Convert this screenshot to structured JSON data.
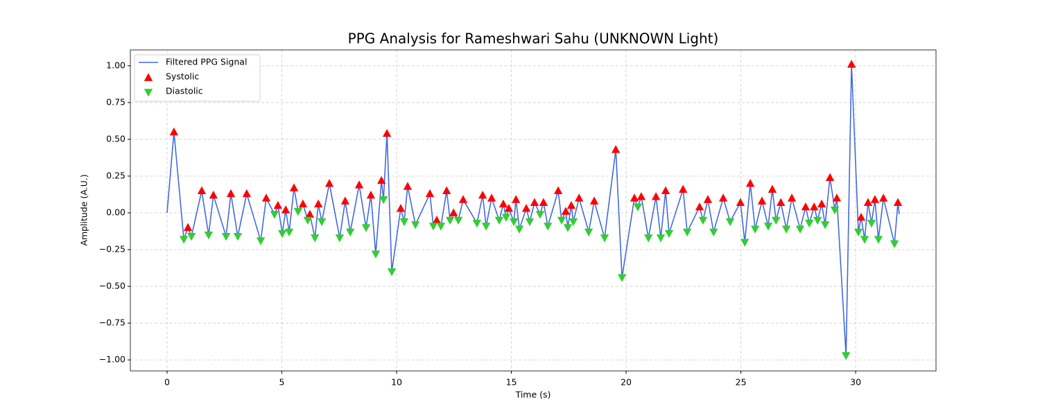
{
  "chart_data": {
    "type": "line",
    "title": "PPG Analysis for Rameshwari Sahu (UNKNOWN Light)",
    "x_label": "Time (s)",
    "y_label": "Amplitude (A.U.)",
    "xlim": [
      -1.6,
      33.5
    ],
    "ylim": [
      -1.075,
      1.108
    ],
    "xticks": [
      0,
      5,
      10,
      15,
      20,
      25,
      30
    ],
    "yticks": [
      {
        "value": -1,
        "label": "−1.00"
      },
      {
        "value": -0.75,
        "label": "−0.75"
      },
      {
        "value": -0.5,
        "label": "−0.50"
      },
      {
        "value": -0.25,
        "label": "−0.25"
      },
      {
        "value": 0,
        "label": "0.00"
      },
      {
        "value": 0.25,
        "label": "0.25"
      },
      {
        "value": 0.5,
        "label": "0.50"
      },
      {
        "value": 0.75,
        "label": "0.75"
      },
      {
        "value": 1,
        "label": "1.00"
      }
    ],
    "grid": true,
    "legend": "upper-left",
    "series": [
      {
        "name": "Filtered PPG Signal",
        "mark": "line",
        "color": "#4169e1",
        "x": [
          0,
          0.3,
          0.73,
          0.91,
          1.06,
          1.51,
          1.81,
          2.02,
          2.57,
          2.78,
          3.08,
          3.47,
          4.08,
          4.32,
          4.68,
          4.83,
          5.02,
          5.17,
          5.32,
          5.53,
          5.71,
          5.92,
          6.13,
          6.22,
          6.44,
          6.59,
          6.74,
          7.07,
          7.52,
          7.76,
          7.98,
          8.37,
          8.67,
          8.88,
          9.09,
          9.34,
          9.43,
          9.58,
          9.79,
          10.18,
          10.33,
          10.48,
          10.82,
          11.45,
          11.6,
          11.75,
          11.93,
          12.18,
          12.33,
          12.48,
          12.69,
          12.9,
          13.5,
          13.75,
          13.9,
          14.14,
          14.47,
          14.65,
          14.77,
          14.89,
          15.11,
          15.2,
          15.35,
          15.65,
          15.8,
          16.01,
          16.25,
          16.4,
          16.59,
          17.04,
          17.19,
          17.37,
          17.46,
          17.61,
          17.7,
          17.95,
          18.37,
          18.61,
          19.06,
          19.55,
          19.82,
          20.36,
          20.51,
          20.66,
          20.97,
          21.3,
          21.51,
          21.72,
          21.87,
          22.48,
          22.66,
          23.2,
          23.35,
          23.56,
          23.81,
          24.23,
          24.53,
          24.98,
          25.17,
          25.41,
          25.62,
          25.92,
          26.19,
          26.37,
          26.53,
          26.74,
          26.98,
          27.22,
          27.58,
          27.82,
          27.98,
          28.19,
          28.34,
          28.52,
          28.67,
          28.88,
          29.09,
          29.18,
          29.58,
          29.82,
          30.12,
          30.24,
          30.39,
          30.54,
          30.69,
          30.84,
          30.99,
          31.21,
          31.69,
          31.84,
          31.9
        ],
        "y": [
          0,
          0.55,
          -0.18,
          -0.1,
          -0.16,
          0.15,
          -0.15,
          0.12,
          -0.16,
          0.13,
          -0.16,
          0.13,
          -0.19,
          0.1,
          -0.01,
          0.05,
          -0.14,
          0.02,
          -0.13,
          0.17,
          0.01,
          0.06,
          -0.05,
          -0.01,
          -0.17,
          0.06,
          -0.06,
          0.2,
          -0.17,
          0.08,
          -0.13,
          0.19,
          -0.1,
          0.12,
          -0.28,
          0.22,
          0.09,
          0.54,
          -0.4,
          0.03,
          -0.06,
          0.18,
          -0.08,
          0.13,
          -0.09,
          -0.05,
          -0.09,
          0.15,
          -0.05,
          0.0,
          -0.05,
          0.09,
          -0.07,
          0.12,
          -0.09,
          0.1,
          -0.05,
          0.06,
          -0.03,
          0.03,
          -0.06,
          0.09,
          -0.11,
          0.03,
          -0.06,
          0.07,
          -0.01,
          0.07,
          -0.09,
          0.15,
          -0.05,
          0.01,
          -0.1,
          0.05,
          -0.06,
          0.1,
          -0.13,
          0.08,
          -0.17,
          0.43,
          -0.44,
          0.1,
          0.04,
          0.11,
          -0.17,
          0.11,
          -0.17,
          0.15,
          -0.14,
          0.16,
          -0.13,
          0.04,
          -0.05,
          0.09,
          -0.13,
          0.1,
          -0.06,
          0.07,
          -0.2,
          0.2,
          -0.11,
          0.08,
          -0.09,
          0.16,
          -0.05,
          0.07,
          -0.11,
          0.1,
          -0.11,
          0.04,
          -0.07,
          0.04,
          -0.05,
          0.06,
          -0.08,
          0.24,
          0.02,
          0.1,
          -0.97,
          1.01,
          -0.13,
          -0.03,
          -0.18,
          0.07,
          -0.07,
          0.09,
          -0.18,
          0.1,
          -0.21,
          0.07,
          -0.01
        ]
      },
      {
        "name": "Systolic",
        "mark": "triangle-up",
        "color": "#ff0000",
        "x": [
          0.3,
          0.91,
          1.51,
          2.02,
          2.78,
          3.47,
          4.32,
          4.83,
          5.17,
          5.53,
          5.92,
          6.22,
          6.59,
          7.07,
          7.76,
          8.37,
          8.88,
          9.34,
          9.58,
          10.18,
          10.48,
          11.45,
          11.75,
          12.18,
          12.48,
          12.9,
          13.75,
          14.14,
          14.65,
          14.89,
          15.2,
          15.65,
          16.01,
          16.4,
          17.04,
          17.37,
          17.61,
          17.95,
          18.61,
          19.55,
          20.36,
          20.66,
          21.3,
          21.72,
          22.48,
          23.2,
          23.56,
          24.23,
          24.98,
          25.41,
          25.92,
          26.37,
          26.74,
          27.22,
          27.82,
          28.19,
          28.52,
          28.88,
          29.18,
          29.82,
          30.24,
          30.54,
          30.84,
          31.21,
          31.84
        ],
        "y": [
          0.55,
          -0.1,
          0.15,
          0.12,
          0.13,
          0.13,
          0.1,
          0.05,
          0.02,
          0.17,
          0.06,
          -0.01,
          0.06,
          0.2,
          0.08,
          0.19,
          0.12,
          0.22,
          0.54,
          0.03,
          0.18,
          0.13,
          -0.05,
          0.15,
          0.0,
          0.09,
          0.12,
          0.1,
          0.06,
          0.03,
          0.09,
          0.03,
          0.07,
          0.07,
          0.15,
          0.01,
          0.05,
          0.1,
          0.08,
          0.43,
          0.1,
          0.11,
          0.11,
          0.15,
          0.16,
          0.04,
          0.09,
          0.1,
          0.07,
          0.2,
          0.08,
          0.16,
          0.07,
          0.1,
          0.04,
          0.04,
          0.06,
          0.24,
          0.1,
          1.01,
          -0.03,
          0.07,
          0.09,
          0.1,
          0.07
        ]
      },
      {
        "name": "Diastolic",
        "mark": "triangle-down",
        "color": "#32cd32",
        "x": [
          0.73,
          1.06,
          1.81,
          2.57,
          3.08,
          4.08,
          4.68,
          5.02,
          5.32,
          5.71,
          6.13,
          6.44,
          6.74,
          7.52,
          7.98,
          8.67,
          9.09,
          9.43,
          9.79,
          10.33,
          10.82,
          11.6,
          11.93,
          12.33,
          12.69,
          13.5,
          13.9,
          14.47,
          14.77,
          15.11,
          15.35,
          15.8,
          16.25,
          16.59,
          17.19,
          17.46,
          17.7,
          18.37,
          19.06,
          19.82,
          20.51,
          20.97,
          21.51,
          21.87,
          22.66,
          23.35,
          23.81,
          24.53,
          25.17,
          25.62,
          26.19,
          26.53,
          26.98,
          27.58,
          27.98,
          28.34,
          28.67,
          29.09,
          29.58,
          30.12,
          30.39,
          30.69,
          30.99,
          31.69
        ],
        "y": [
          -0.18,
          -0.16,
          -0.15,
          -0.16,
          -0.16,
          -0.19,
          -0.01,
          -0.14,
          -0.13,
          0.01,
          -0.05,
          -0.17,
          -0.06,
          -0.17,
          -0.13,
          -0.1,
          -0.28,
          0.09,
          -0.4,
          -0.06,
          -0.08,
          -0.09,
          -0.09,
          -0.05,
          -0.05,
          -0.07,
          -0.09,
          -0.05,
          -0.03,
          -0.06,
          -0.11,
          -0.06,
          -0.01,
          -0.09,
          -0.05,
          -0.1,
          -0.06,
          -0.13,
          -0.17,
          -0.44,
          0.04,
          -0.17,
          -0.17,
          -0.14,
          -0.13,
          -0.05,
          -0.13,
          -0.06,
          -0.2,
          -0.11,
          -0.09,
          -0.05,
          -0.11,
          -0.11,
          -0.07,
          -0.05,
          -0.08,
          0.02,
          -0.97,
          -0.13,
          -0.18,
          -0.07,
          -0.18,
          -0.21
        ]
      }
    ]
  }
}
